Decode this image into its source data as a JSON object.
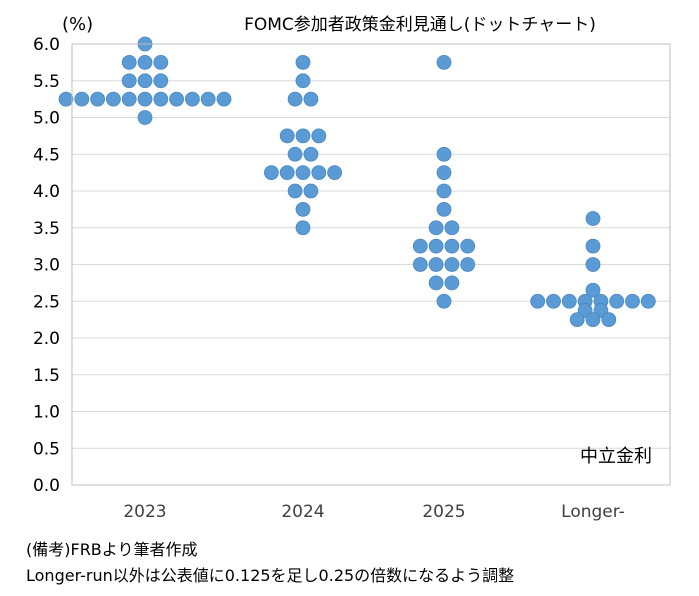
{
  "chart_data": {
    "type": "scatter",
    "title": "FOMC参加者政策金利見通し(ドットチャート)",
    "unit_label": "(%)",
    "annotation": "中立金利",
    "categories": [
      "2023",
      "2024",
      "2025",
      "Longer-run"
    ],
    "y_ticks": [
      "6.0",
      "5.5",
      "5.0",
      "4.5",
      "4.0",
      "3.5",
      "3.0",
      "2.5",
      "2.0",
      "1.5",
      "1.0",
      "0.5",
      "0.0"
    ],
    "ylim": [
      0,
      6
    ],
    "grid": true,
    "dots": [
      {
        "category": "2023",
        "values": [
          {
            "y": 6.0,
            "count": 1
          },
          {
            "y": 5.75,
            "count": 3
          },
          {
            "y": 5.5,
            "count": 3
          },
          {
            "y": 5.25,
            "count": 11
          },
          {
            "y": 5.0,
            "count": 1
          }
        ]
      },
      {
        "category": "2024",
        "values": [
          {
            "y": 5.75,
            "count": 1
          },
          {
            "y": 5.5,
            "count": 1
          },
          {
            "y": 5.25,
            "count": 2
          },
          {
            "y": 4.75,
            "count": 3
          },
          {
            "y": 4.5,
            "count": 2
          },
          {
            "y": 4.25,
            "count": 5
          },
          {
            "y": 4.0,
            "count": 2
          },
          {
            "y": 3.75,
            "count": 1
          },
          {
            "y": 3.5,
            "count": 1
          }
        ]
      },
      {
        "category": "2025",
        "values": [
          {
            "y": 5.75,
            "count": 1
          },
          {
            "y": 4.5,
            "count": 1
          },
          {
            "y": 4.25,
            "count": 1
          },
          {
            "y": 4.0,
            "count": 1
          },
          {
            "y": 3.75,
            "count": 1
          },
          {
            "y": 3.5,
            "count": 2
          },
          {
            "y": 3.25,
            "count": 4
          },
          {
            "y": 3.0,
            "count": 4
          },
          {
            "y": 2.75,
            "count": 2
          },
          {
            "y": 2.5,
            "count": 1
          }
        ]
      },
      {
        "category": "Longer-run",
        "values": [
          {
            "y": 3.625,
            "count": 1
          },
          {
            "y": 3.25,
            "count": 1
          },
          {
            "y": 3.0,
            "count": 1
          },
          {
            "y": 2.65,
            "count": 1
          },
          {
            "y": 2.5,
            "count": 8
          },
          {
            "y": 2.375,
            "count": 2
          },
          {
            "y": 2.25,
            "count": 3
          }
        ]
      }
    ],
    "dot_color": "#5b9bd5"
  },
  "notes": {
    "line1": "(備考)FRBより筆者作成",
    "line2": "Longer-run以外は公表値に0.125を足し0.25の倍数になるよう調整"
  }
}
